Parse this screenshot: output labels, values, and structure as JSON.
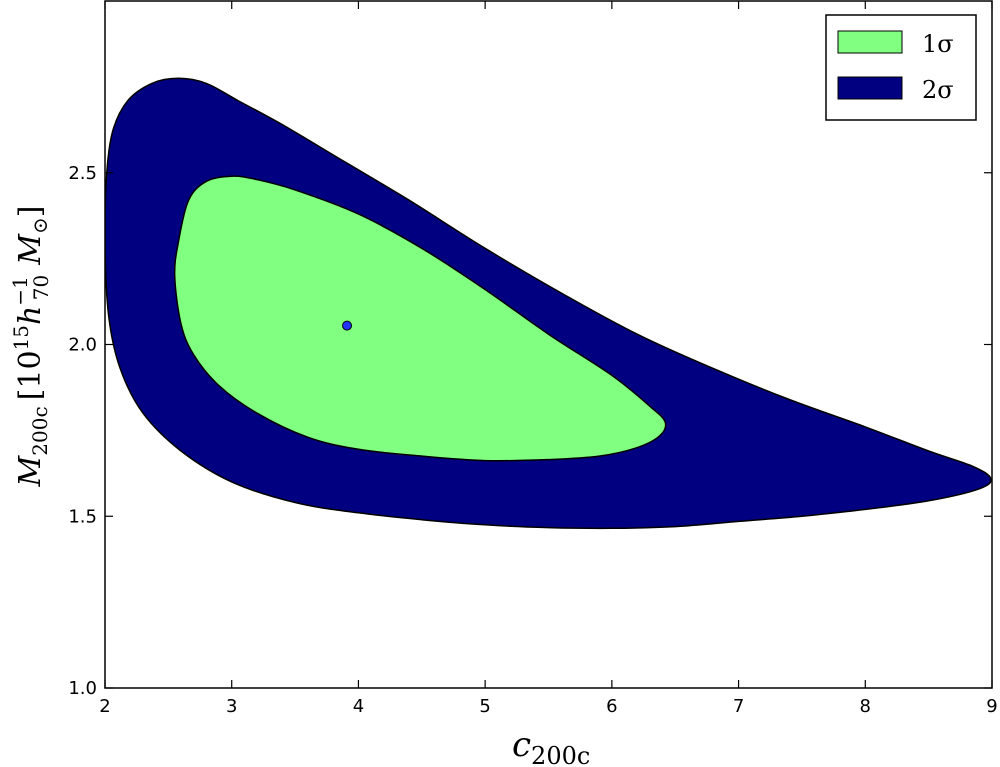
{
  "chart_data": {
    "type": "contour",
    "xlim": [
      2,
      9
    ],
    "ylim": [
      1.0,
      3.0
    ],
    "x_ticks": [
      2,
      3,
      4,
      5,
      6,
      7,
      8,
      9
    ],
    "y_ticks": [
      1.0,
      1.5,
      2.0,
      2.5
    ],
    "x_tick_labels": [
      "2",
      "3",
      "4",
      "5",
      "6",
      "7",
      "8",
      "9"
    ],
    "y_tick_labels": [
      "1.0",
      "1.5",
      "2.0",
      "2.5"
    ],
    "xlabel": {
      "main": "c",
      "sub": "200c"
    },
    "ylabel": {
      "m": "M",
      "m_sub": "200c",
      "open": "[",
      "base": "10",
      "exp": "15",
      "h": "h",
      "h_sup": "−1",
      "h_sub": "70",
      "msun": "M",
      "msun_sub": "⊙",
      "close": "]"
    },
    "grid": false,
    "legend": {
      "placement": "top-right",
      "entries": [
        {
          "label": "1σ",
          "color": "#80ff80"
        },
        {
          "label": "2σ",
          "color": "#000080"
        }
      ]
    },
    "best_fit": {
      "c": 3.91,
      "M": 2.055,
      "color": "#2233ff"
    },
    "contours": [
      {
        "level": "2σ",
        "color": "#000080",
        "points": [
          [
            2.0,
            2.28
          ],
          [
            2.01,
            2.48
          ],
          [
            2.06,
            2.62
          ],
          [
            2.18,
            2.71
          ],
          [
            2.37,
            2.76
          ],
          [
            2.58,
            2.775
          ],
          [
            2.8,
            2.76
          ],
          [
            3.05,
            2.71
          ],
          [
            3.4,
            2.64
          ],
          [
            3.9,
            2.53
          ],
          [
            4.4,
            2.42
          ],
          [
            5.0,
            2.28
          ],
          [
            5.6,
            2.15
          ],
          [
            6.2,
            2.03
          ],
          [
            6.8,
            1.93
          ],
          [
            7.4,
            1.84
          ],
          [
            8.0,
            1.76
          ],
          [
            8.5,
            1.69
          ],
          [
            8.85,
            1.645
          ],
          [
            8.99,
            1.61
          ],
          [
            8.9,
            1.58
          ],
          [
            8.5,
            1.545
          ],
          [
            8.0,
            1.52
          ],
          [
            7.5,
            1.5
          ],
          [
            7.0,
            1.485
          ],
          [
            6.5,
            1.47
          ],
          [
            6.0,
            1.465
          ],
          [
            5.5,
            1.467
          ],
          [
            5.0,
            1.475
          ],
          [
            4.5,
            1.49
          ],
          [
            4.0,
            1.51
          ],
          [
            3.5,
            1.54
          ],
          [
            3.0,
            1.6
          ],
          [
            2.6,
            1.69
          ],
          [
            2.3,
            1.8
          ],
          [
            2.12,
            1.93
          ],
          [
            2.03,
            2.08
          ]
        ]
      },
      {
        "level": "1σ",
        "color": "#80ff80",
        "points": [
          [
            2.55,
            2.2
          ],
          [
            2.58,
            2.3
          ],
          [
            2.66,
            2.42
          ],
          [
            2.8,
            2.475
          ],
          [
            3.0,
            2.49
          ],
          [
            3.2,
            2.48
          ],
          [
            3.5,
            2.45
          ],
          [
            4.0,
            2.38
          ],
          [
            4.5,
            2.28
          ],
          [
            5.0,
            2.16
          ],
          [
            5.5,
            2.03
          ],
          [
            6.0,
            1.91
          ],
          [
            6.3,
            1.82
          ],
          [
            6.42,
            1.775
          ],
          [
            6.38,
            1.735
          ],
          [
            6.2,
            1.7
          ],
          [
            5.9,
            1.675
          ],
          [
            5.5,
            1.665
          ],
          [
            5.0,
            1.662
          ],
          [
            4.5,
            1.675
          ],
          [
            4.0,
            1.695
          ],
          [
            3.6,
            1.73
          ],
          [
            3.2,
            1.8
          ],
          [
            2.9,
            1.88
          ],
          [
            2.7,
            1.97
          ],
          [
            2.6,
            2.06
          ]
        ]
      }
    ]
  }
}
